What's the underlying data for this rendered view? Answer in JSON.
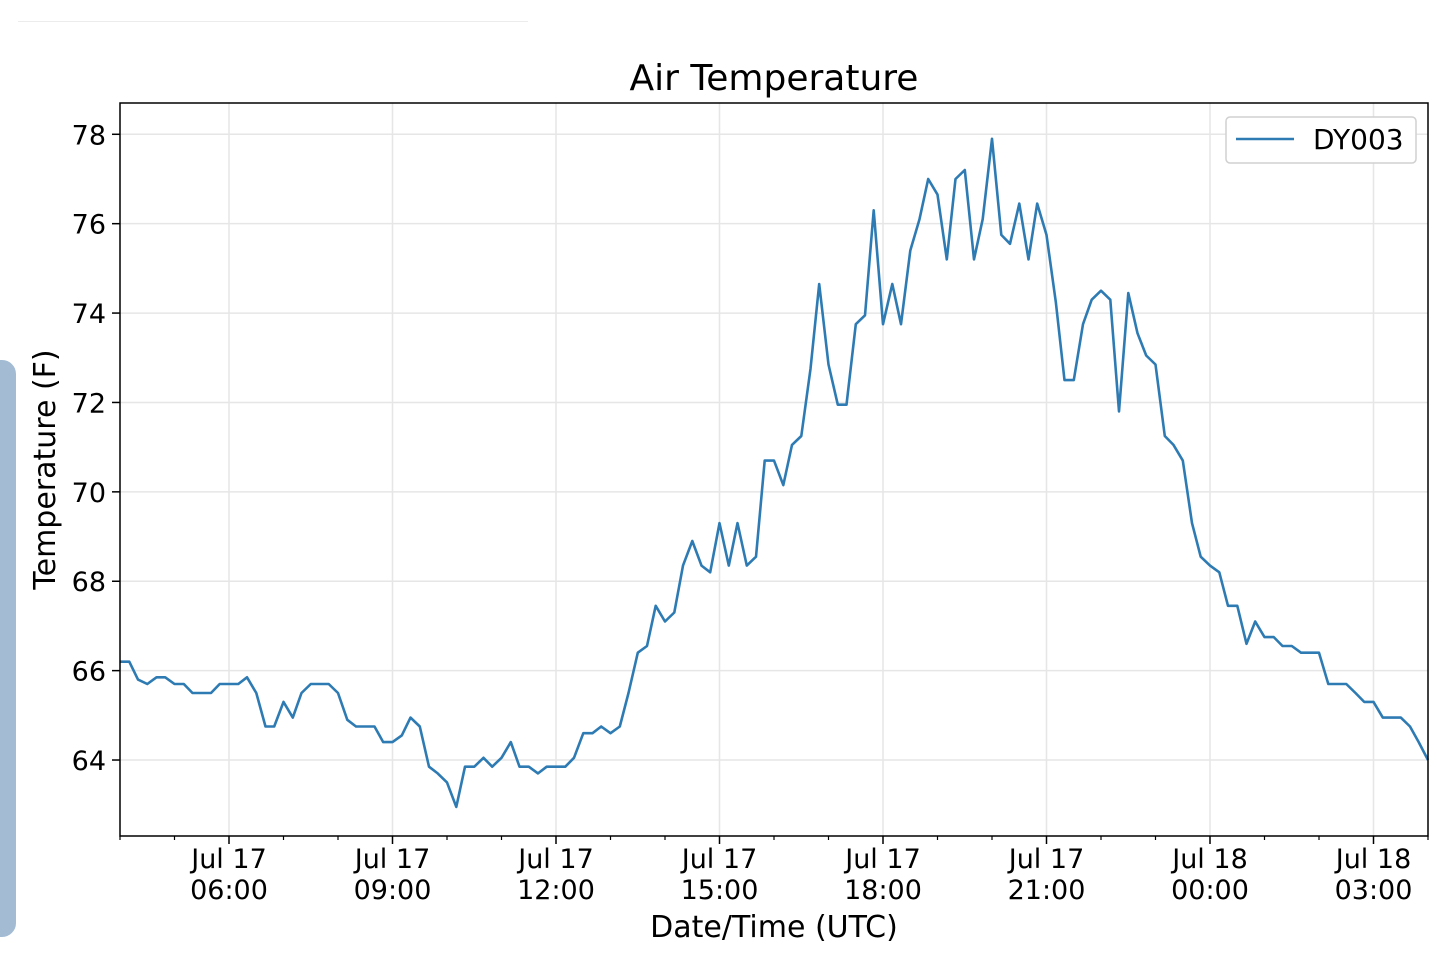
{
  "chart_data": {
    "type": "line",
    "title": "Air Temperature",
    "xlabel": "Date/Time (UTC)",
    "ylabel": "Temperature (F)",
    "legend_position": "top-right",
    "grid": true,
    "ylim": [
      62.3,
      78.7
    ],
    "yticks": [
      64,
      66,
      68,
      70,
      72,
      74,
      76,
      78
    ],
    "xlim_hours": [
      4.0,
      28.0
    ],
    "xticks": [
      {
        "hour": 6,
        "line1": "Jul 17",
        "line2": "06:00"
      },
      {
        "hour": 9,
        "line1": "Jul 17",
        "line2": "09:00"
      },
      {
        "hour": 12,
        "line1": "Jul 17",
        "line2": "12:00"
      },
      {
        "hour": 15,
        "line1": "Jul 17",
        "line2": "15:00"
      },
      {
        "hour": 18,
        "line1": "Jul 17",
        "line2": "18:00"
      },
      {
        "hour": 21,
        "line1": "Jul 17",
        "line2": "21:00"
      },
      {
        "hour": 24,
        "line1": "Jul 18",
        "line2": "00:00"
      },
      {
        "hour": 27,
        "line1": "Jul 18",
        "line2": "03:00"
      }
    ],
    "series": [
      {
        "name": "DY003",
        "color": "#2e7bb3",
        "points": [
          [
            4.0,
            66.2
          ],
          [
            4.17,
            66.2
          ],
          [
            4.33,
            65.8
          ],
          [
            4.5,
            65.7
          ],
          [
            4.67,
            65.85
          ],
          [
            4.83,
            65.85
          ],
          [
            5.0,
            65.7
          ],
          [
            5.17,
            65.7
          ],
          [
            5.33,
            65.5
          ],
          [
            5.5,
            65.5
          ],
          [
            5.67,
            65.5
          ],
          [
            5.83,
            65.7
          ],
          [
            6.0,
            65.7
          ],
          [
            6.17,
            65.7
          ],
          [
            6.33,
            65.85
          ],
          [
            6.5,
            65.5
          ],
          [
            6.67,
            64.75
          ],
          [
            6.83,
            64.75
          ],
          [
            7.0,
            65.3
          ],
          [
            7.17,
            64.95
          ],
          [
            7.33,
            65.5
          ],
          [
            7.5,
            65.7
          ],
          [
            7.67,
            65.7
          ],
          [
            7.83,
            65.7
          ],
          [
            8.0,
            65.5
          ],
          [
            8.17,
            64.9
          ],
          [
            8.33,
            64.75
          ],
          [
            8.5,
            64.75
          ],
          [
            8.67,
            64.75
          ],
          [
            8.83,
            64.4
          ],
          [
            9.0,
            64.4
          ],
          [
            9.17,
            64.55
          ],
          [
            9.33,
            64.95
          ],
          [
            9.5,
            64.75
          ],
          [
            9.67,
            63.85
          ],
          [
            9.83,
            63.7
          ],
          [
            10.0,
            63.5
          ],
          [
            10.17,
            62.95
          ],
          [
            10.33,
            63.85
          ],
          [
            10.5,
            63.85
          ],
          [
            10.67,
            64.05
          ],
          [
            10.83,
            63.85
          ],
          [
            11.0,
            64.05
          ],
          [
            11.17,
            64.4
          ],
          [
            11.33,
            63.85
          ],
          [
            11.5,
            63.85
          ],
          [
            11.67,
            63.7
          ],
          [
            11.83,
            63.85
          ],
          [
            12.0,
            63.85
          ],
          [
            12.17,
            63.85
          ],
          [
            12.33,
            64.05
          ],
          [
            12.5,
            64.6
          ],
          [
            12.67,
            64.6
          ],
          [
            12.83,
            64.75
          ],
          [
            13.0,
            64.6
          ],
          [
            13.17,
            64.75
          ],
          [
            13.33,
            65.5
          ],
          [
            13.5,
            66.4
          ],
          [
            13.67,
            66.55
          ],
          [
            13.83,
            67.45
          ],
          [
            14.0,
            67.1
          ],
          [
            14.17,
            67.3
          ],
          [
            14.33,
            68.35
          ],
          [
            14.5,
            68.9
          ],
          [
            14.67,
            68.35
          ],
          [
            14.83,
            68.2
          ],
          [
            15.0,
            69.3
          ],
          [
            15.17,
            68.35
          ],
          [
            15.33,
            69.3
          ],
          [
            15.5,
            68.35
          ],
          [
            15.67,
            68.55
          ],
          [
            15.83,
            70.7
          ],
          [
            16.0,
            70.7
          ],
          [
            16.17,
            70.15
          ],
          [
            16.33,
            71.05
          ],
          [
            16.5,
            71.25
          ],
          [
            16.67,
            72.75
          ],
          [
            16.83,
            74.65
          ],
          [
            17.0,
            72.85
          ],
          [
            17.17,
            71.95
          ],
          [
            17.33,
            71.95
          ],
          [
            17.5,
            73.75
          ],
          [
            17.67,
            73.95
          ],
          [
            17.83,
            76.3
          ],
          [
            18.0,
            73.75
          ],
          [
            18.17,
            74.65
          ],
          [
            18.33,
            73.75
          ],
          [
            18.5,
            75.4
          ],
          [
            18.67,
            76.1
          ],
          [
            18.83,
            77.0
          ],
          [
            19.0,
            76.65
          ],
          [
            19.17,
            75.2
          ],
          [
            19.33,
            77.0
          ],
          [
            19.5,
            77.2
          ],
          [
            19.67,
            75.2
          ],
          [
            19.83,
            76.1
          ],
          [
            20.0,
            77.9
          ],
          [
            20.17,
            75.75
          ],
          [
            20.33,
            75.55
          ],
          [
            20.5,
            76.45
          ],
          [
            20.67,
            75.2
          ],
          [
            20.83,
            76.45
          ],
          [
            21.0,
            75.75
          ],
          [
            21.17,
            74.25
          ],
          [
            21.33,
            72.5
          ],
          [
            21.5,
            72.5
          ],
          [
            21.67,
            73.75
          ],
          [
            21.83,
            74.3
          ],
          [
            22.0,
            74.5
          ],
          [
            22.17,
            74.3
          ],
          [
            22.33,
            71.8
          ],
          [
            22.5,
            74.45
          ],
          [
            22.67,
            73.55
          ],
          [
            22.83,
            73.05
          ],
          [
            23.0,
            72.85
          ],
          [
            23.17,
            71.25
          ],
          [
            23.33,
            71.05
          ],
          [
            23.5,
            70.7
          ],
          [
            23.67,
            69.3
          ],
          [
            23.83,
            68.55
          ],
          [
            24.0,
            68.35
          ],
          [
            24.17,
            68.2
          ],
          [
            24.33,
            67.45
          ],
          [
            24.5,
            67.45
          ],
          [
            24.67,
            66.6
          ],
          [
            24.83,
            67.1
          ],
          [
            25.0,
            66.75
          ],
          [
            25.17,
            66.75
          ],
          [
            25.33,
            66.55
          ],
          [
            25.5,
            66.55
          ],
          [
            25.67,
            66.4
          ],
          [
            25.83,
            66.4
          ],
          [
            26.0,
            66.4
          ],
          [
            26.17,
            65.7
          ],
          [
            26.33,
            65.7
          ],
          [
            26.5,
            65.7
          ],
          [
            26.67,
            65.5
          ],
          [
            26.83,
            65.3
          ],
          [
            27.0,
            65.3
          ],
          [
            27.17,
            64.95
          ],
          [
            27.33,
            64.95
          ],
          [
            27.5,
            64.95
          ],
          [
            27.67,
            64.75
          ],
          [
            27.83,
            64.4
          ],
          [
            28.0,
            64.0
          ]
        ]
      }
    ]
  }
}
